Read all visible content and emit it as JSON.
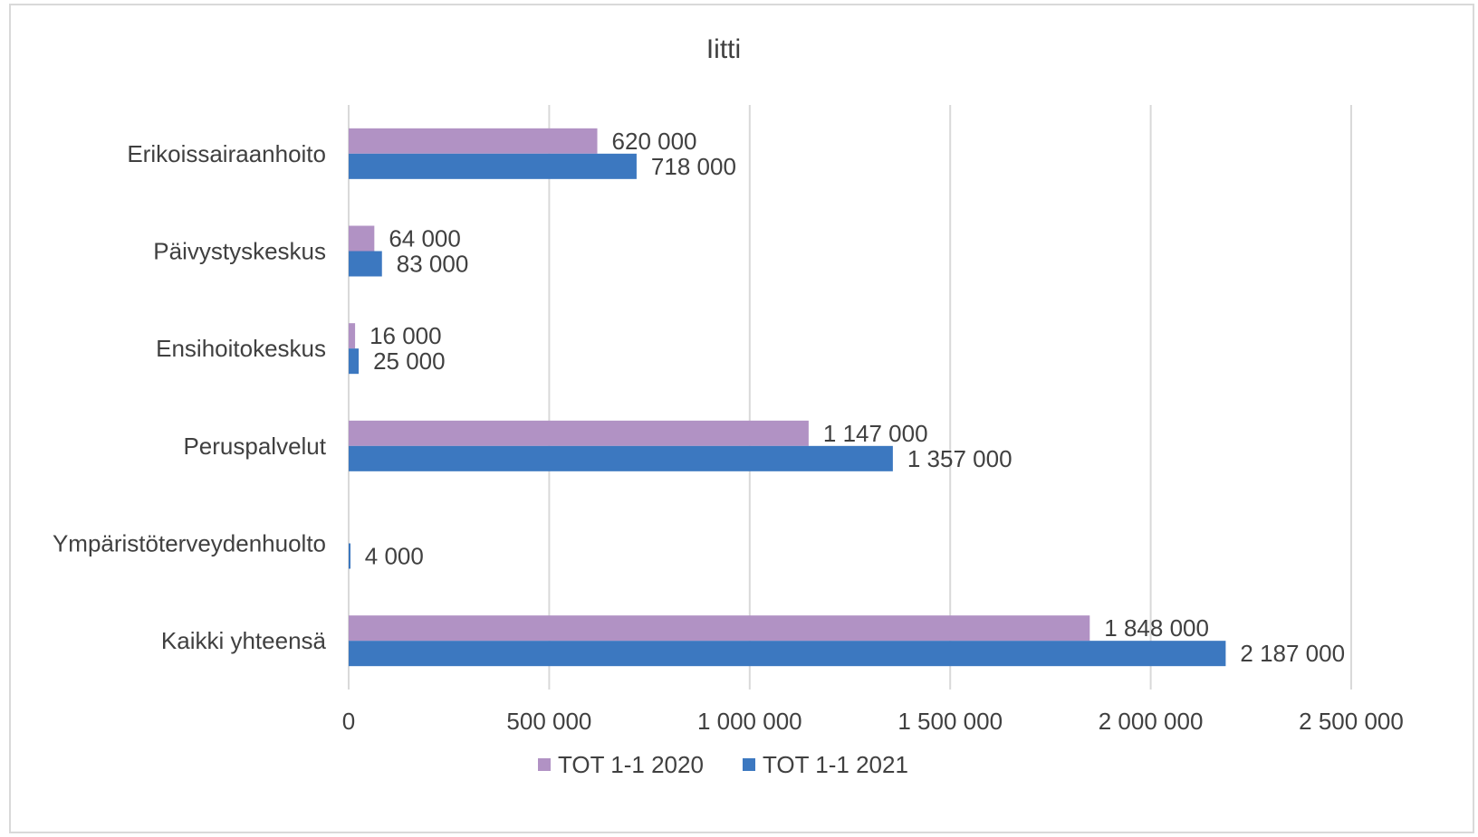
{
  "chart_data": {
    "type": "bar",
    "orientation": "horizontal",
    "title": "Iitti",
    "categories": [
      "Erikoissairaanhoito",
      "Päivystyskeskus",
      "Ensihoitokeskus",
      "Peruspalvelut",
      "Ympäristöterveydenhuolto",
      "Kaikki yhteensä"
    ],
    "series": [
      {
        "name": "TOT 1-1 2020",
        "color": "#b192c4",
        "values": [
          620000,
          64000,
          16000,
          1147000,
          0,
          1848000
        ],
        "labels": [
          "620 000",
          "64 000",
          "16 000",
          "1 147 000",
          "",
          "1 848 000"
        ]
      },
      {
        "name": "TOT 1-1 2021",
        "color": "#3c78c0",
        "values": [
          718000,
          83000,
          25000,
          1357000,
          4000,
          2187000
        ],
        "labels": [
          "718 000",
          "83 000",
          "25 000",
          "1 357 000",
          "4 000",
          "2 187 000"
        ]
      }
    ],
    "xlim": [
      0,
      2500000
    ],
    "xticks": [
      0,
      500000,
      1000000,
      1500000,
      2000000,
      2500000
    ],
    "xtick_labels": [
      "0",
      "500 000",
      "1 000 000",
      "1 500 000",
      "2 000 000",
      "2 500 000"
    ],
    "grid": "vertical",
    "legend": "bottom"
  }
}
